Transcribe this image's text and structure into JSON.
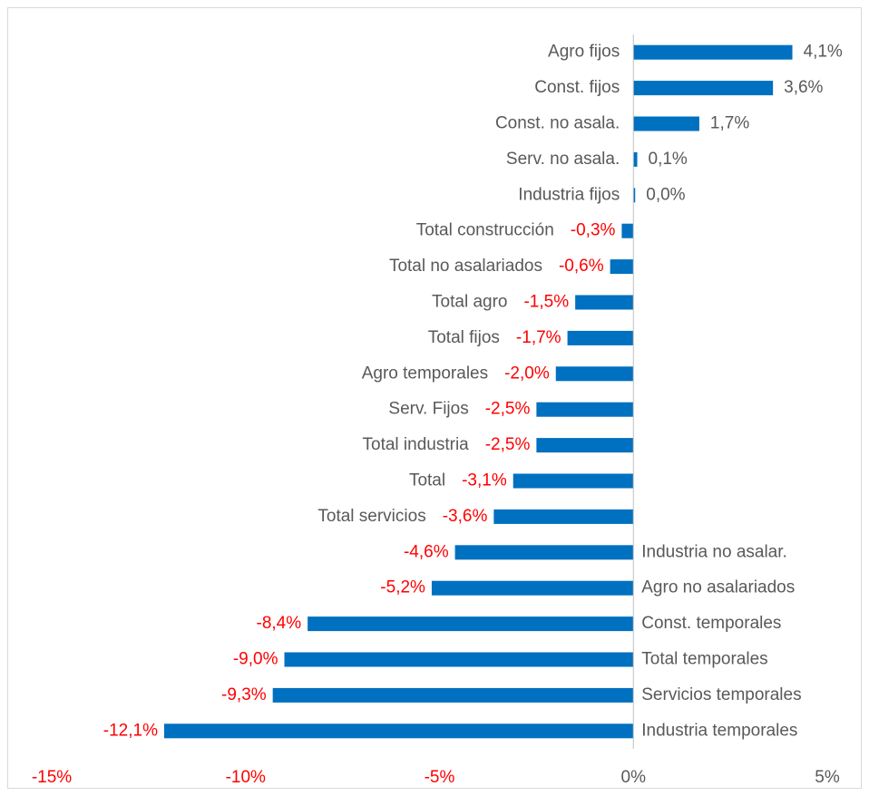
{
  "chart_data": {
    "type": "bar",
    "orientation": "horizontal",
    "categories": [
      "Agro fijos",
      "Const. fijos",
      "Const. no asala.",
      "Serv. no asala.",
      "Industria fijos",
      "Total construcción",
      "Total no asalariados",
      "Total agro",
      "Total fijos",
      "Agro temporales",
      "Serv. Fijos",
      "Total industria",
      "Total",
      "Total servicios",
      "Industria no asalar.",
      "Agro no asalariados",
      "Const. temporales",
      "Total temporales",
      "Servicios temporales",
      "Industria temporales"
    ],
    "values": [
      4.1,
      3.6,
      1.7,
      0.1,
      0.0,
      -0.3,
      -0.6,
      -1.5,
      -1.7,
      -2.0,
      -2.5,
      -2.5,
      -3.1,
      -3.6,
      -4.6,
      -5.2,
      -8.4,
      -9.0,
      -9.3,
      -12.1
    ],
    "value_labels": [
      "4,1%",
      "3,6%",
      "1,7%",
      "0,1%",
      "0,0%",
      "-0,3%",
      "-0,6%",
      "-1,5%",
      "-1,7%",
      "-2,0%",
      "-2,5%",
      "-2,5%",
      "-3,1%",
      "-3,6%",
      "-4,6%",
      "-5,2%",
      "-8,4%",
      "-9,0%",
      "-9,3%",
      "-12,1%"
    ],
    "color": "#0070c0",
    "negative_label_color": "#ff0000",
    "xlim": [
      -15,
      5
    ],
    "xticks": [
      {
        "value": -15,
        "label": "-15%"
      },
      {
        "value": -10,
        "label": "-10%"
      },
      {
        "value": -5,
        "label": "-5%"
      },
      {
        "value": 0,
        "label": "0%"
      },
      {
        "value": 5,
        "label": "5%"
      }
    ],
    "grid": false
  }
}
